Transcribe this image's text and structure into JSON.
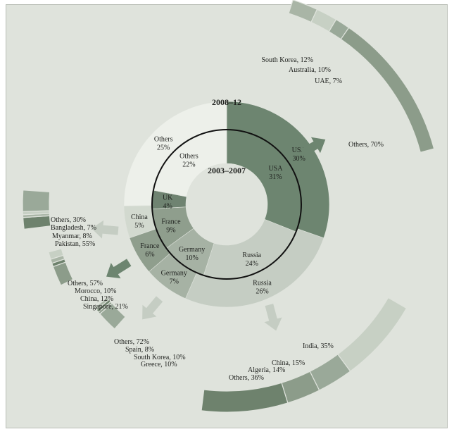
{
  "chart_data": {
    "type": "pie",
    "outer_ring": {
      "period": "2008–12",
      "slices": [
        {
          "name": "USA",
          "value": 30,
          "label": "USA\n30%",
          "color": "#6d8570"
        },
        {
          "name": "Russia",
          "value": 26,
          "label": "Russia\n26%",
          "color": "#c5cdc3"
        },
        {
          "name": "Germany",
          "value": 7,
          "label": "Germany\n7%",
          "color": "#a6b2a4"
        },
        {
          "name": "France",
          "value": 6,
          "label": "France\n6%",
          "color": "#8f9e8d"
        },
        {
          "name": "China",
          "value": 5,
          "label": "China\n5%",
          "color": "#d2d9cf"
        },
        {
          "name": "Others",
          "value": 25,
          "label": "Others\n25%",
          "color": "#edf0ea"
        }
      ]
    },
    "inner_ring": {
      "period": "2003–2007",
      "slices": [
        {
          "name": "USA",
          "value": 31,
          "label": "USA\n31%",
          "color": "#6d8570"
        },
        {
          "name": "Russia",
          "value": 24,
          "label": "Russia\n24%",
          "color": "#c5cdc3"
        },
        {
          "name": "Germany",
          "value": 10,
          "label": "Germany\n10%",
          "color": "#a6b2a4"
        },
        {
          "name": "France",
          "value": 9,
          "label": "France\n9%",
          "color": "#8f9e8d"
        },
        {
          "name": "UK",
          "value": 4,
          "label": "UK\n4%",
          "color": "#6f8371"
        },
        {
          "name": "Others",
          "value": 22,
          "label": "Others\n22%",
          "color": "#edf0ea"
        }
      ]
    },
    "breakdowns": [
      {
        "of": "USA",
        "items": [
          {
            "label": "South Korea, 12%",
            "value": 12
          },
          {
            "label": "Australia, 10%",
            "value": 10
          },
          {
            "label": "UAE, 7%",
            "value": 7
          },
          {
            "label": "Others, 70%",
            "value": 70
          }
        ]
      },
      {
        "of": "Russia",
        "items": [
          {
            "label": "India, 35%",
            "value": 35
          },
          {
            "label": "China, 15%",
            "value": 15
          },
          {
            "label": "Algeria, 14%",
            "value": 14
          },
          {
            "label": "Others, 36%",
            "value": 36
          }
        ]
      },
      {
        "of": "Germany",
        "items": [
          {
            "label": "Others, 72%",
            "value": 72
          },
          {
            "label": "Spain, 8%",
            "value": 8
          },
          {
            "label": "South Korea, 10%",
            "value": 10
          },
          {
            "label": "Greece, 10%",
            "value": 10
          }
        ]
      },
      {
        "of": "France",
        "items": [
          {
            "label": "Others, 57%",
            "value": 57
          },
          {
            "label": "Morocco, 10%",
            "value": 10
          },
          {
            "label": "China, 12%",
            "value": 12
          },
          {
            "label": "Singapore, 21%",
            "value": 21
          }
        ]
      },
      {
        "of": "China",
        "items": [
          {
            "label": "Others, 30%",
            "value": 30
          },
          {
            "label": "Bangladesh, 7%",
            "value": 7
          },
          {
            "label": "Myanmar, 8%",
            "value": 8
          },
          {
            "label": "Pakistan, 55%",
            "value": 55
          }
        ]
      }
    ],
    "xlabel": "",
    "ylabel": ""
  }
}
